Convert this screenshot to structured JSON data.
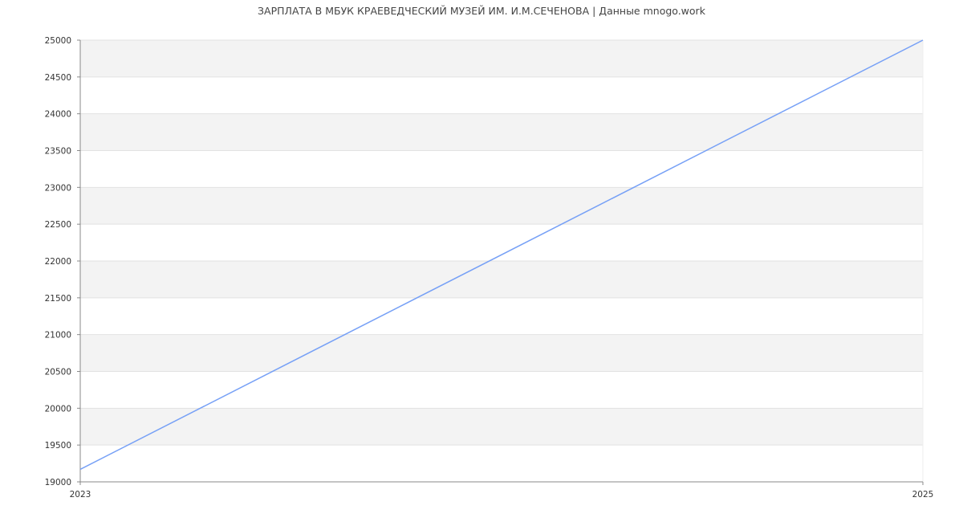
{
  "chart_data": {
    "type": "line",
    "title": "ЗАРПЛАТА В МБУК КРАЕВЕДЧЕСКИЙ МУЗЕЙ ИМ. И.М.СЕЧЕНОВА | Данные mnogo.work",
    "xlabel": "",
    "ylabel": "",
    "x": [
      2023,
      2025
    ],
    "x_ticks": [
      "2023",
      "2025"
    ],
    "xlim": [
      2023,
      2025
    ],
    "ylim": [
      19000,
      25000
    ],
    "y_ticks": [
      19000,
      19500,
      20000,
      20500,
      21000,
      21500,
      22000,
      22500,
      23000,
      23500,
      24000,
      24500,
      25000
    ],
    "grid": true,
    "series": [
      {
        "values": [
          19170,
          25000
        ],
        "color": "#76a0f6"
      }
    ],
    "band_color": "#f3f3f3"
  }
}
